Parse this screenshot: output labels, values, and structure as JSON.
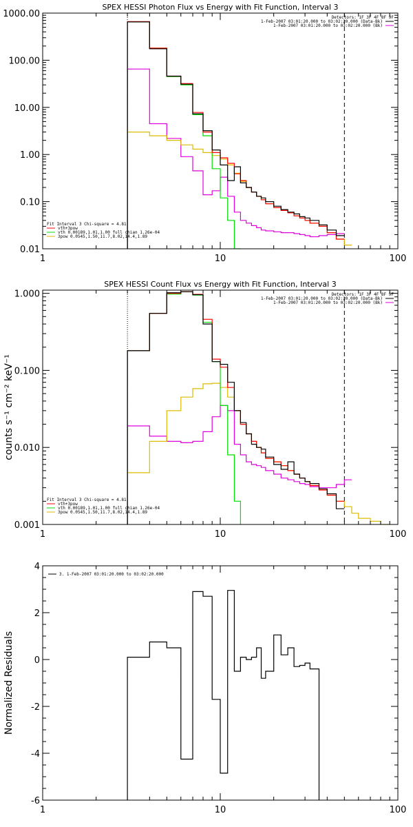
{
  "chart_data": [
    {
      "type": "line",
      "title": "SPEX HESSI Photon Flux vs Energy with Fit Function, Interval 3",
      "xlabel": "",
      "ylabel": "",
      "x_scale": "log",
      "y_scale": "log",
      "xlim": [
        1,
        100
      ],
      "ylim": [
        0.01,
        1000
      ],
      "x_ticks": [
        {
          "value": 1,
          "label": "1"
        },
        {
          "value": 10,
          "label": "10"
        },
        {
          "value": 100,
          "label": "100"
        }
      ],
      "y_ticks": [
        {
          "value": 1000,
          "label": "1000.00"
        },
        {
          "value": 100,
          "label": "100.00"
        },
        {
          "value": 10,
          "label": "10.00"
        },
        {
          "value": 1,
          "label": "1.00"
        },
        {
          "value": 0.1,
          "label": "0.10"
        },
        {
          "value": 0.01,
          "label": "0.01"
        }
      ],
      "vlines": [
        {
          "x": 3,
          "style": "dotted"
        },
        {
          "x": 50,
          "style": "dashed"
        }
      ],
      "legend_tr": [
        "Detectors: 1F 3F 4F 8F 9F",
        "1-Feb-2007 03:01:20.000 to 03:02:20.000 (Data-Bk)",
        "1-Feb-2007 03:01:20.000 to 03:02:20.000 (Bk)"
      ],
      "legend_bl": [
        "Fit Interval 3   Chi-square = 4.81",
        "vth+3pow",
        "vth 0.00189,1.01,1.00  full chian 1.26e-04",
        "3pow 0.0545,1.50,11.7,8.02,14.4,1.89"
      ],
      "colors": {
        "data": "#000000",
        "total": "#ff0000",
        "vth": "#00dd00",
        "pow": "#ddbb00",
        "bk": "#dd00dd"
      },
      "edges": [
        3,
        4,
        5,
        6,
        7,
        8,
        9,
        10,
        11,
        12,
        13,
        14,
        15,
        16,
        17,
        18,
        20,
        22,
        24,
        26,
        28,
        30,
        32,
        36,
        40,
        45,
        50,
        55
      ],
      "series": [
        {
          "name": "",
          "color": "#dd00dd",
          "values": [
            65,
            4.5,
            2.2,
            0.9,
            0.45,
            0.14,
            0.17,
            0.33,
            0.13,
            0.06,
            0.04,
            0.035,
            0.031,
            0.028,
            0.025,
            0.024,
            0.023,
            0.022,
            0.022,
            0.021,
            0.02,
            0.019,
            0.018,
            0.019,
            0.02,
            0.021,
            null
          ]
        },
        {
          "name": "",
          "color": "#ddbb00",
          "values": [
            3.0,
            2.5,
            2.0,
            1.6,
            1.3,
            1.1,
            0.95,
            0.8,
            0.6,
            0.4,
            0.27,
            0.2,
            0.16,
            0.13,
            0.11,
            0.09,
            0.075,
            0.065,
            0.058,
            0.05,
            0.045,
            0.04,
            0.035,
            0.03,
            0.022,
            0.016,
            0.012
          ]
        },
        {
          "name": "",
          "color": "#00dd00",
          "values": [
            650,
            180,
            45,
            30,
            7,
            2.5,
            0.5,
            0.12,
            0.04,
            0.01,
            null,
            null,
            null,
            null,
            null,
            null,
            null,
            null,
            null,
            null,
            null,
            null,
            null,
            null,
            null,
            null,
            null
          ]
        },
        {
          "name": "",
          "color": "#ff0000",
          "values": [
            660,
            180,
            46,
            32,
            7.8,
            3.0,
            1.1,
            0.85,
            0.65,
            0.39,
            0.28,
            0.2,
            0.16,
            0.13,
            0.11,
            0.09,
            0.075,
            0.065,
            0.058,
            0.05,
            0.045,
            0.04,
            0.035,
            0.03,
            0.022,
            0.016,
            null
          ]
        },
        {
          "name": "",
          "color": "#000000",
          "values": [
            650,
            175,
            46,
            31,
            7.3,
            3.2,
            1.25,
            0.6,
            0.28,
            0.55,
            0.25,
            0.2,
            0.16,
            0.13,
            0.12,
            0.1,
            0.08,
            0.068,
            0.06,
            0.055,
            0.048,
            0.045,
            0.04,
            0.032,
            0.025,
            0.019,
            null
          ]
        }
      ]
    },
    {
      "type": "line",
      "title": "SPEX HESSI Count Flux vs Energy with Fit Function, Interval 3",
      "xlabel": "",
      "ylabel": "counts s⁻¹ cm⁻² keV⁻¹",
      "x_scale": "log",
      "y_scale": "log",
      "xlim": [
        1,
        100
      ],
      "ylim": [
        0.001,
        1.1
      ],
      "x_ticks": [
        {
          "value": 1,
          "label": "1"
        },
        {
          "value": 10,
          "label": "10"
        },
        {
          "value": 100,
          "label": "100"
        }
      ],
      "y_ticks": [
        {
          "value": 1,
          "label": "1.000"
        },
        {
          "value": 0.1,
          "label": "0.100"
        },
        {
          "value": 0.01,
          "label": "0.010"
        },
        {
          "value": 0.001,
          "label": "0.001"
        }
      ],
      "vlines": [
        {
          "x": 3,
          "style": "dotted"
        },
        {
          "x": 50,
          "style": "dashed"
        }
      ],
      "legend_tr": [
        "Detectors: 1F 3F 4F 8F 9F",
        "1-Feb-2007 03:01:20.000 to 03:02:20.000 (Data-Bk)",
        "1-Feb-2007 03:01:20.000 to 03:02:20.000 (Bk)"
      ],
      "legend_bl": [
        "Fit Interval 3   Chi-square = 4.81",
        "vth+3pow",
        "vth 0.00189,1.01,1.00  full chian 1.26e-04",
        "3pow 0.0545,1.50,11.7,8.02,14.4,1.89"
      ],
      "colors": {
        "data": "#000000",
        "total": "#ff0000",
        "vth": "#00dd00",
        "pow": "#ddbb00",
        "bk": "#dd00dd"
      },
      "edges": [
        3,
        4,
        5,
        6,
        7,
        8,
        9,
        10,
        11,
        12,
        13,
        14,
        15,
        16,
        17,
        18,
        20,
        22,
        24,
        26,
        28,
        30,
        32,
        36,
        40,
        45,
        50,
        55,
        60,
        70,
        80,
        90
      ],
      "series": [
        {
          "name": "",
          "color": "#dd00dd",
          "values": [
            0.019,
            0.014,
            0.012,
            0.0115,
            0.012,
            0.016,
            0.025,
            0.035,
            0.03,
            0.011,
            0.008,
            0.0065,
            0.006,
            0.0058,
            0.0055,
            0.005,
            0.0045,
            0.004,
            0.0038,
            0.0036,
            0.0034,
            0.0033,
            0.0031,
            0.003,
            0.003,
            0.0033,
            0.0038,
            null,
            null,
            null,
            null
          ]
        },
        {
          "name": "",
          "color": "#ddbb00",
          "values": [
            0.0047,
            0.012,
            0.03,
            0.045,
            0.058,
            0.067,
            0.068,
            0.06,
            0.045,
            0.03,
            0.02,
            0.015,
            0.012,
            0.01,
            0.0085,
            0.0072,
            0.0065,
            0.0058,
            0.005,
            0.0045,
            0.004,
            0.0036,
            0.0032,
            0.0028,
            0.0024,
            0.002,
            0.0017,
            0.0014,
            0.0012,
            0.0011,
            0.001
          ]
        },
        {
          "name": "",
          "color": "#00dd00",
          "values": [
            0.18,
            0.55,
            0.98,
            1.05,
            0.95,
            0.42,
            0.13,
            0.035,
            0.008,
            0.002,
            0.0008,
            null,
            null,
            null,
            null,
            null,
            null,
            null,
            null,
            null,
            null,
            null,
            null,
            null,
            null,
            null,
            null,
            null,
            null,
            null,
            null
          ]
        },
        {
          "name": "",
          "color": "#ff0000",
          "values": [
            0.18,
            0.55,
            1.0,
            1.05,
            0.97,
            0.46,
            0.14,
            0.11,
            0.06,
            0.03,
            0.02,
            0.015,
            0.012,
            0.01,
            0.0085,
            0.0072,
            0.0065,
            0.0058,
            0.005,
            0.0045,
            0.004,
            0.0036,
            0.0032,
            0.0028,
            0.0024,
            0.002,
            null,
            null,
            null,
            null,
            null
          ]
        },
        {
          "name": "",
          "color": "#000000",
          "values": [
            0.18,
            0.55,
            1.02,
            1.05,
            0.96,
            0.4,
            0.13,
            0.12,
            0.07,
            0.03,
            0.021,
            0.015,
            0.011,
            0.01,
            0.0095,
            0.0075,
            0.006,
            0.0052,
            0.0065,
            0.0045,
            0.004,
            0.0036,
            0.0034,
            0.0029,
            0.0025,
            0.0016,
            null,
            null,
            null,
            null,
            null
          ]
        }
      ]
    },
    {
      "type": "line",
      "title": "",
      "xlabel": "",
      "ylabel": "Normalized Residuals",
      "x_scale": "log",
      "y_scale": "linear",
      "xlim": [
        1,
        100
      ],
      "ylim": [
        -6,
        4
      ],
      "x_ticks": [
        {
          "value": 1,
          "label": "1"
        },
        {
          "value": 10,
          "label": "10"
        },
        {
          "value": 100,
          "label": "100"
        }
      ],
      "y_ticks": [
        {
          "value": 4,
          "label": "4"
        },
        {
          "value": 2,
          "label": "2"
        },
        {
          "value": 0,
          "label": "0"
        },
        {
          "value": -2,
          "label": "-2"
        },
        {
          "value": -4,
          "label": "-4"
        },
        {
          "value": -6,
          "label": "-6"
        }
      ],
      "legend_text": "3. 1-Feb-2007 03:01:20.000 to 03:02:20.000",
      "edges": [
        3,
        4,
        5,
        6,
        7,
        8,
        9,
        10,
        11,
        12,
        13,
        14,
        15,
        16,
        17,
        18,
        20,
        22,
        24,
        26,
        28,
        30,
        32,
        36,
        40,
        45,
        50
      ],
      "series": [
        {
          "name": "",
          "color": "#000000",
          "values": [
            0.1,
            0.75,
            0.5,
            -4.25,
            2.9,
            2.7,
            -1.7,
            -4.85,
            2.95,
            -0.5,
            0.1,
            0.0,
            0.1,
            0.5,
            -0.8,
            -0.5,
            1.05,
            0.2,
            0.5,
            -0.3,
            -0.25,
            -0.15,
            -0.4
          ]
        }
      ]
    }
  ]
}
